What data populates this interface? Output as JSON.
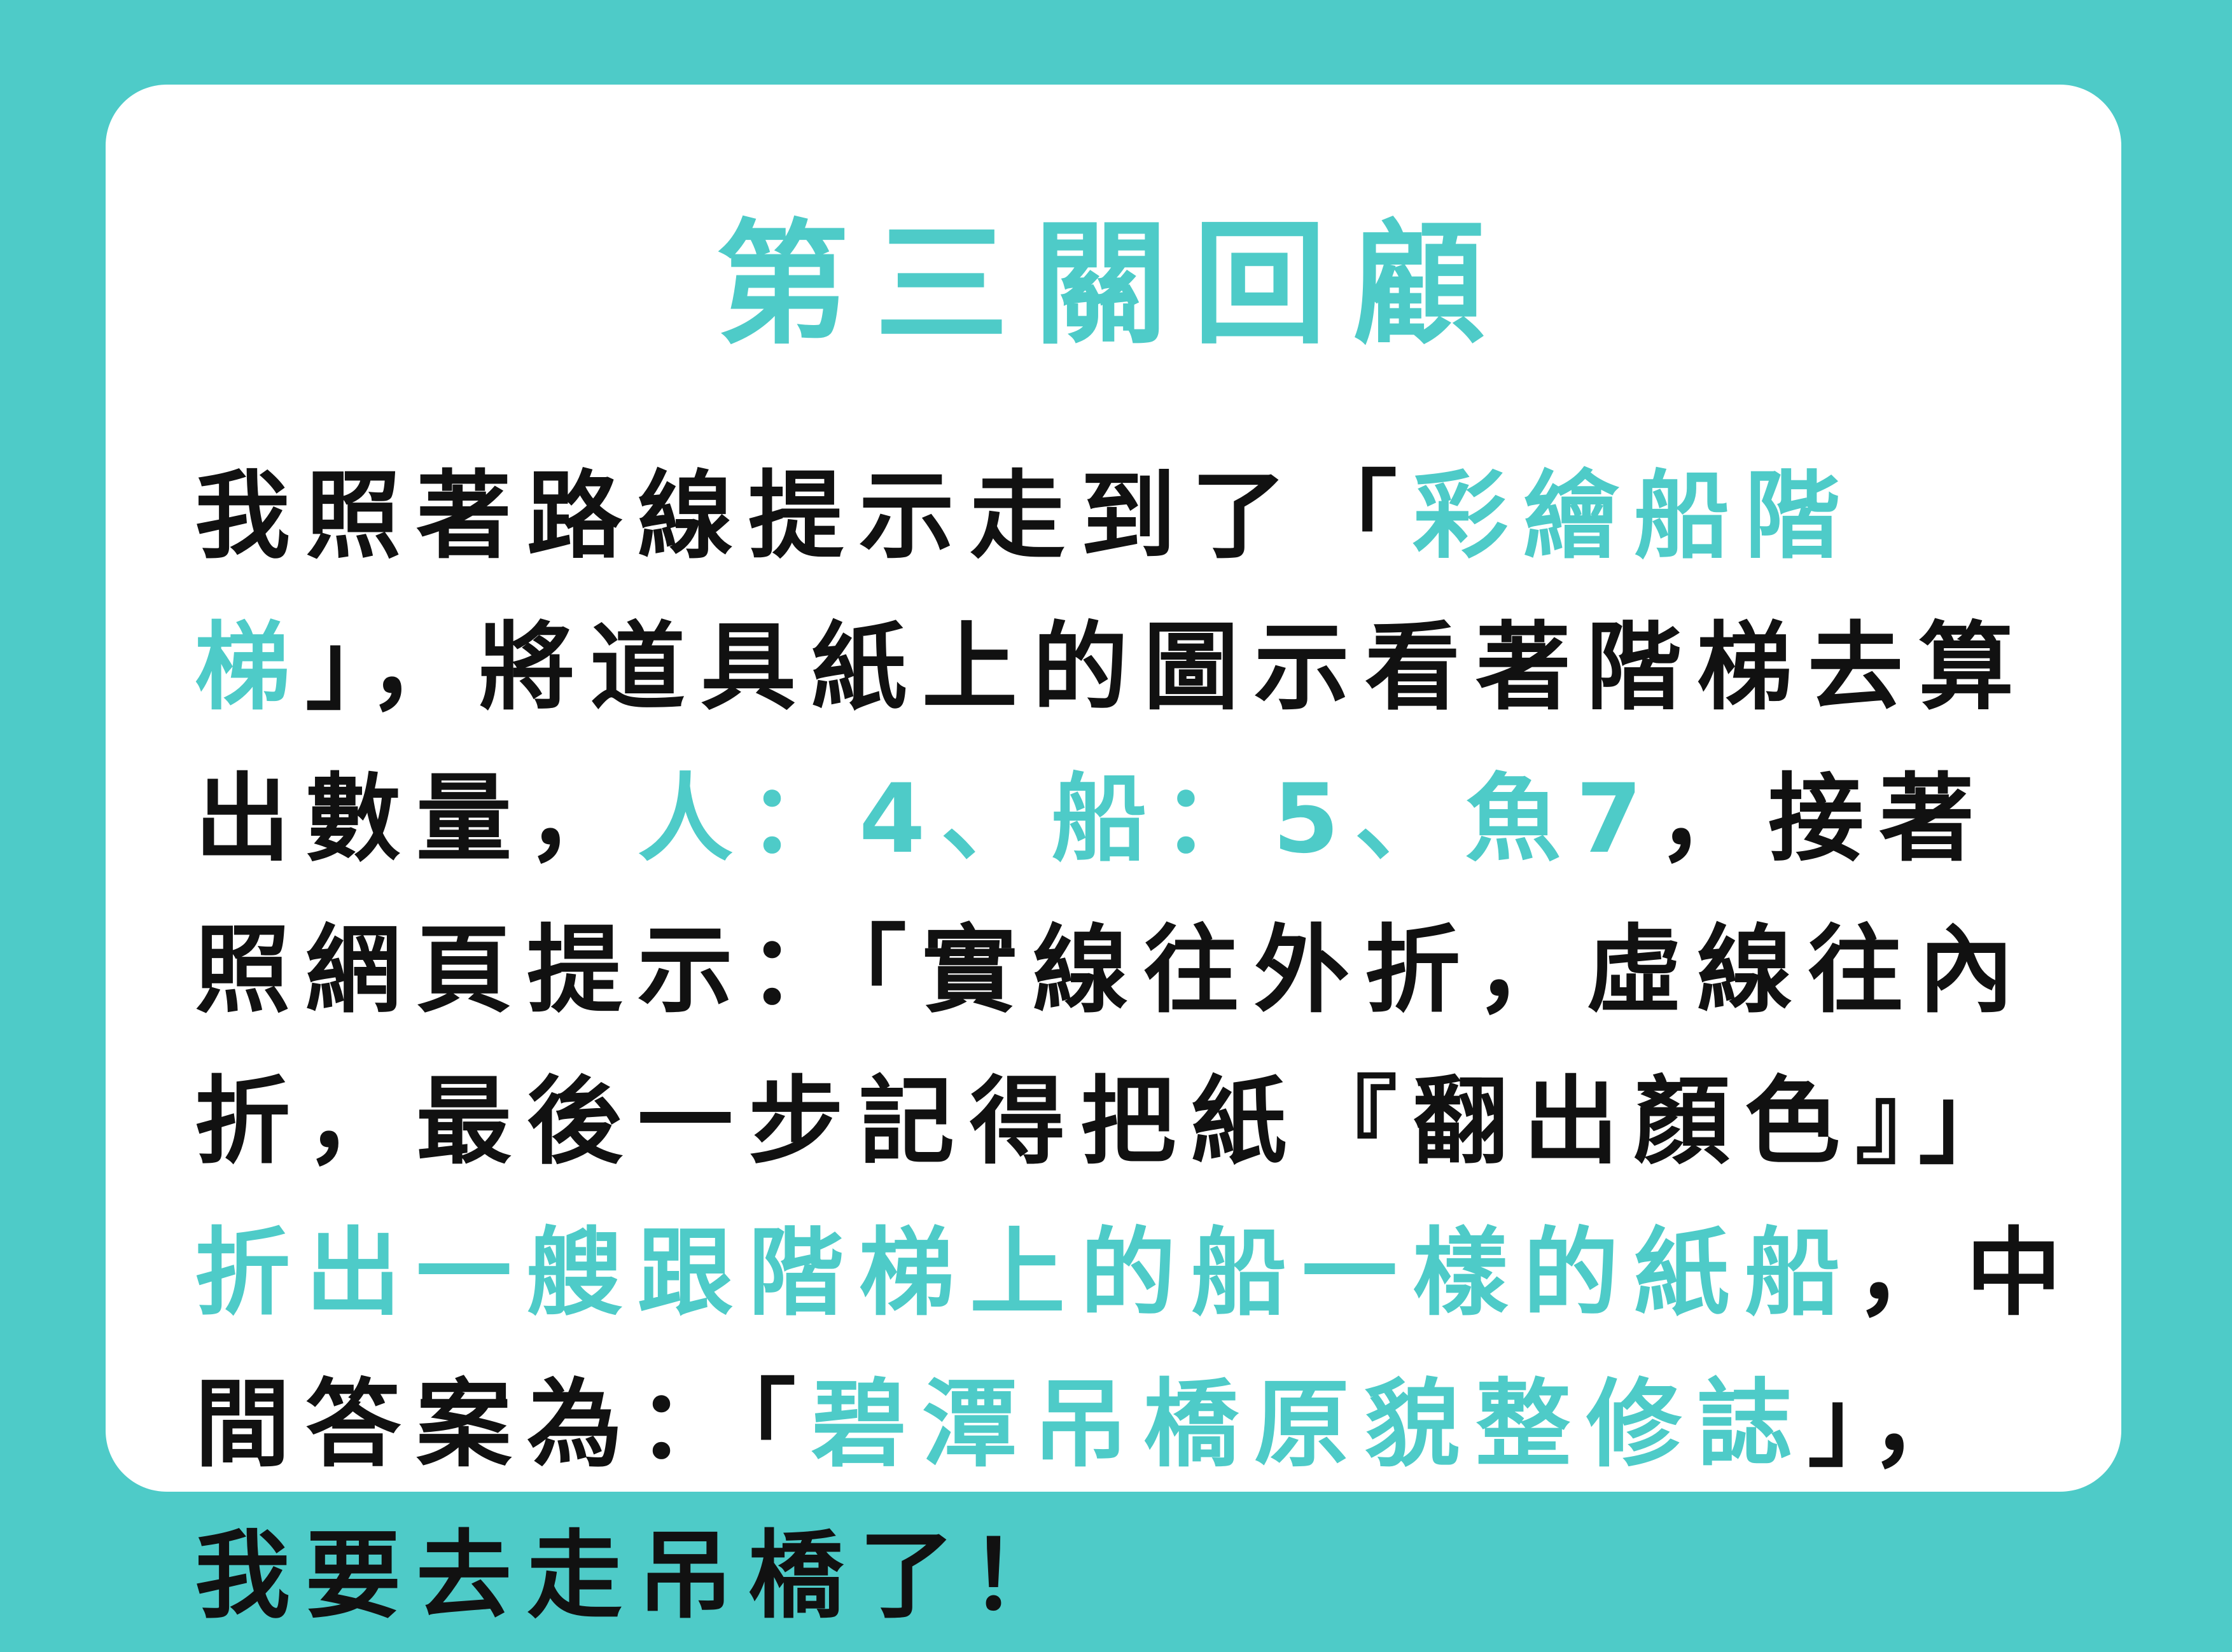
{
  "title": "第三關回顧",
  "colors": {
    "background": "#4ecbc8",
    "card": "#ffffff",
    "text": "#111111",
    "highlight": "#4ecbc8"
  },
  "paragraph": [
    {
      "text": "我照著路線提示走到了「",
      "highlight": false
    },
    {
      "text": "彩繪船階梯",
      "highlight": true
    },
    {
      "text": "」，將道具紙上的圖示看著階梯去算出數量，",
      "highlight": false
    },
    {
      "text": "人：4、船：5、魚7",
      "highlight": true
    },
    {
      "text": "，接著照網頁提示：「實線往外折，虛線往內折，最後一步記得把紙『翻出顏色』」",
      "highlight": false
    },
    {
      "text": "折出一艘跟階梯上的船一樣的紙船",
      "highlight": true
    },
    {
      "text": "，中間答案為：「",
      "highlight": false
    },
    {
      "text": "碧潭吊橋原貌整修誌",
      "highlight": true
    },
    {
      "text": "」，我要去走吊橋了！",
      "highlight": false
    }
  ]
}
